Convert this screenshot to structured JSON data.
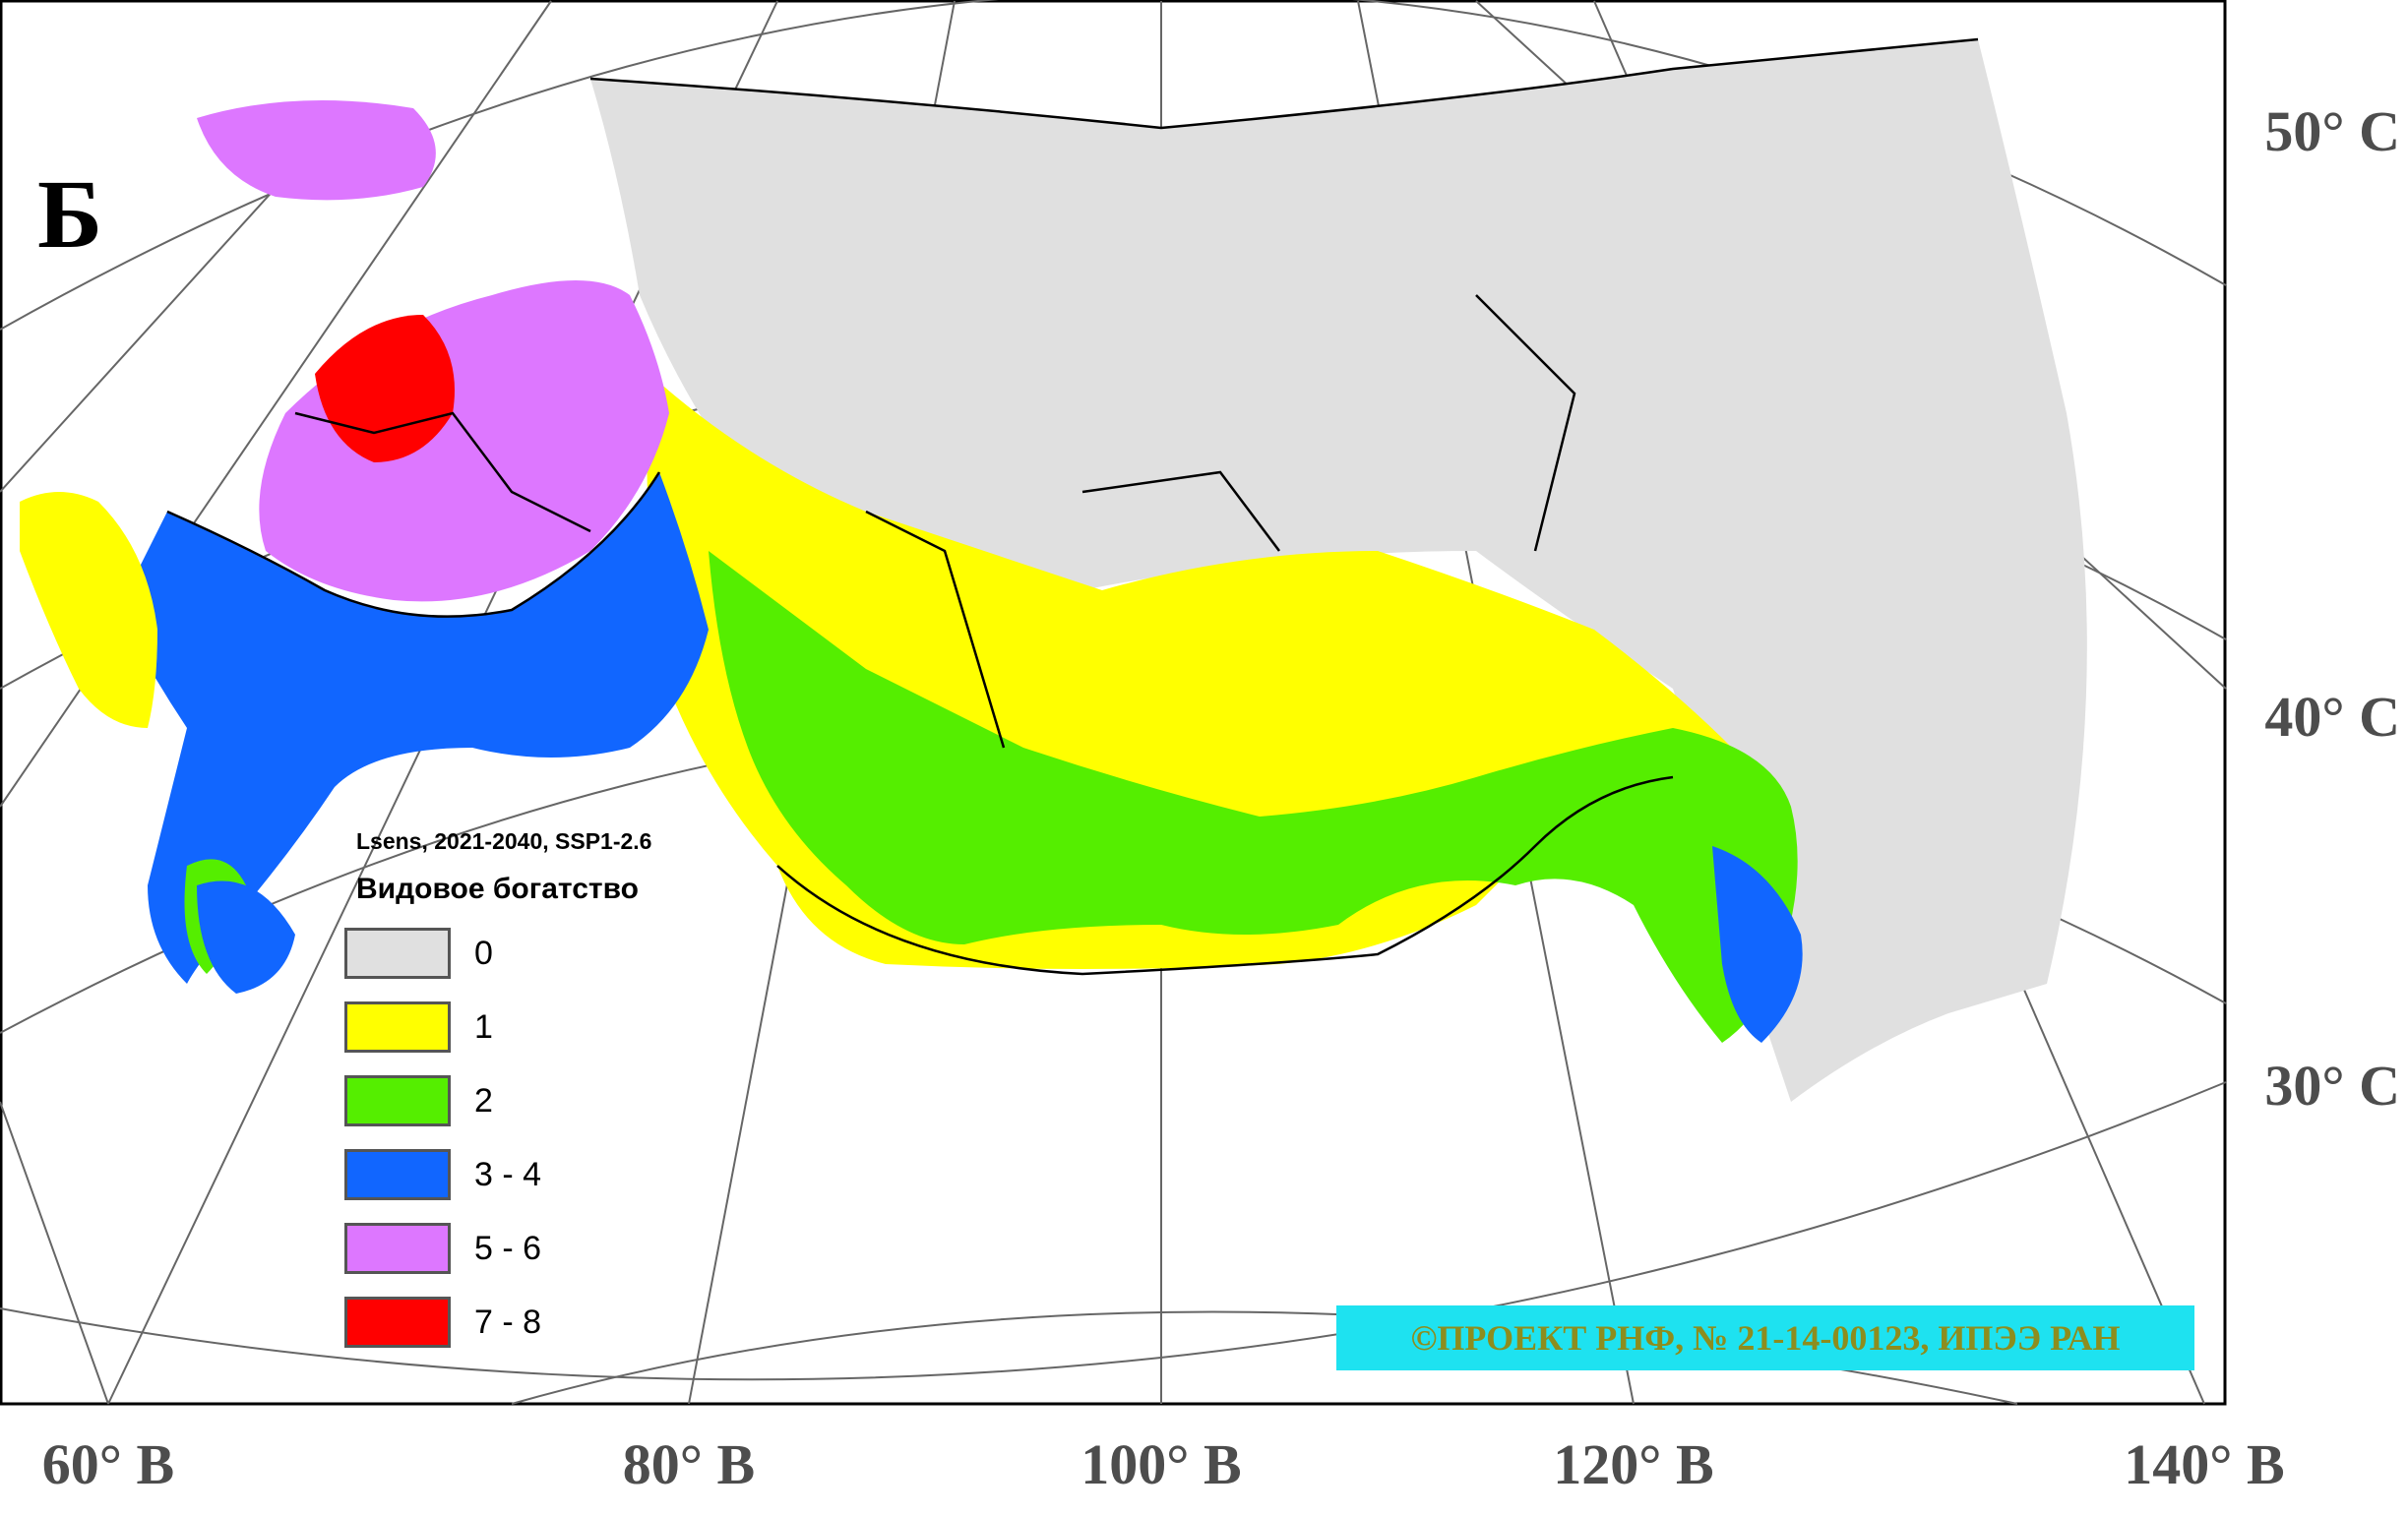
{
  "panel_letter": "Б",
  "legend": {
    "subtitle": "Lsens, 2021-2040, SSP1-2.6",
    "title": "Видовое богатство",
    "items": [
      {
        "label": "0",
        "color": "#e0e0e0"
      },
      {
        "label": "1",
        "color": "#ffff00"
      },
      {
        "label": "2",
        "color": "#55ee00"
      },
      {
        "label": "3 - 4",
        "color": "#1166ff"
      },
      {
        "label": "5 - 6",
        "color": "#dd77ff"
      },
      {
        "label": "7 - 8",
        "color": "#ff0000"
      }
    ]
  },
  "latitude_labels": [
    "50° С",
    "40° С",
    "30° С"
  ],
  "longitude_labels": [
    "60° В",
    "80° В",
    "100° В",
    "120° В",
    "140° В"
  ],
  "copyright": "©ПРОЕКТ РНФ, № 21-14-00123, ИПЭЭ РАН"
}
